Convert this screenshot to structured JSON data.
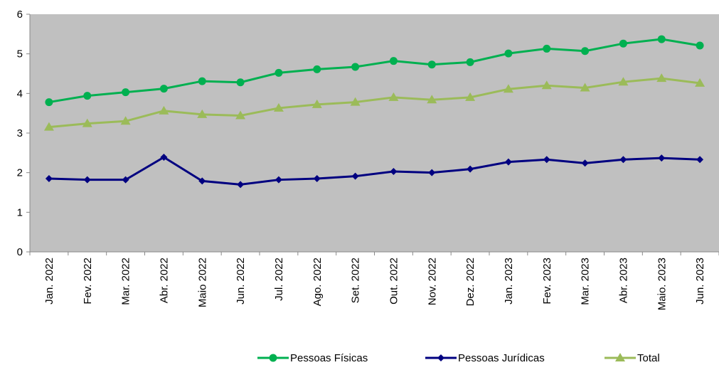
{
  "chart_data": {
    "type": "line",
    "categories": [
      "Jan. 2022",
      "Fev. 2022",
      "Mar. 2022",
      "Abr. 2022",
      "Maio 2022",
      "Jun. 2022",
      "Jul. 2022",
      "Ago. 2022",
      "Set. 2022",
      "Out. 2022",
      "Nov. 2022",
      "Dez. 2022",
      "Jan. 2023",
      "Fev. 2023",
      "Mar. 2023",
      "Abr. 2023",
      "Maio. 2023",
      "Jun. 2023"
    ],
    "series": [
      {
        "name": "Pessoas Físicas",
        "color": "#00b050",
        "marker": "circle",
        "values": [
          3.78,
          3.94,
          4.03,
          4.12,
          4.31,
          4.28,
          4.52,
          4.61,
          4.67,
          4.82,
          4.73,
          4.79,
          5.01,
          5.13,
          5.07,
          5.26,
          5.37,
          5.21
        ]
      },
      {
        "name": "Pessoas Jurídicas",
        "color": "#000080",
        "marker": "diamond",
        "values": [
          1.85,
          1.82,
          1.82,
          2.39,
          1.79,
          1.7,
          1.82,
          1.85,
          1.91,
          2.03,
          2.0,
          2.09,
          2.27,
          2.33,
          2.24,
          2.33,
          2.37,
          2.33
        ]
      },
      {
        "name": "Total",
        "color": "#9bbb59",
        "marker": "triangle",
        "values": [
          3.15,
          3.24,
          3.3,
          3.56,
          3.47,
          3.44,
          3.63,
          3.72,
          3.78,
          3.9,
          3.84,
          3.9,
          4.11,
          4.2,
          4.14,
          4.29,
          4.38,
          4.26
        ]
      }
    ],
    "ylim": [
      0,
      6
    ],
    "yticks": [
      0,
      1,
      2,
      3,
      4,
      5,
      6
    ],
    "legend": "bottom",
    "plot_background": "#c0c0c0"
  }
}
